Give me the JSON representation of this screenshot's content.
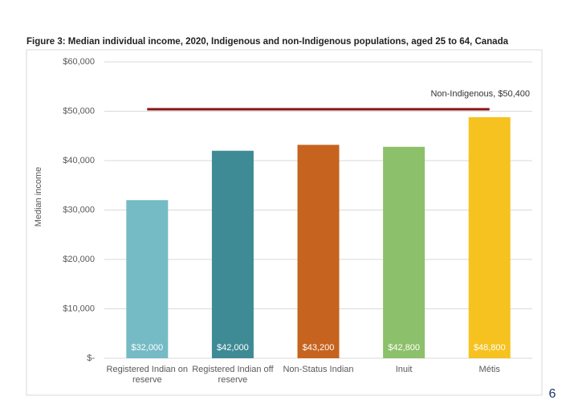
{
  "chart_data": {
    "type": "bar",
    "title": "Figure 3: Median individual income, 2020, Indigenous and non-Indigenous populations, aged 25 to 64, Canada",
    "y_label": "Median income",
    "categories": [
      "Registered Indian on reserve",
      "Registered Indian off reserve",
      "Non-Status Indian",
      "Inuit",
      "Métis"
    ],
    "values": [
      32000,
      42000,
      43200,
      42800,
      48800
    ],
    "value_labels": [
      "$32,000",
      "$42,000",
      "$43,200",
      "$42,800",
      "$48,800"
    ],
    "colors": [
      "#74bbc5",
      "#3e8a95",
      "#c6631f",
      "#8cc06a",
      "#f5c21f"
    ],
    "ylim": [
      0,
      60000
    ],
    "yticks": [
      {
        "value": 0,
        "label": "$-"
      },
      {
        "value": 10000,
        "label": "$10,000"
      },
      {
        "value": 20000,
        "label": "$20,000"
      },
      {
        "value": 30000,
        "label": "$30,000"
      },
      {
        "value": 40000,
        "label": "$40,000"
      },
      {
        "value": 50000,
        "label": "$50,000"
      },
      {
        "value": 60000,
        "label": "$60,000"
      }
    ],
    "grid": true,
    "reference_line": {
      "value": 50400,
      "label": "Non-Indigenous, $50,400",
      "color": "#8b1414"
    }
  },
  "page_number": "6"
}
